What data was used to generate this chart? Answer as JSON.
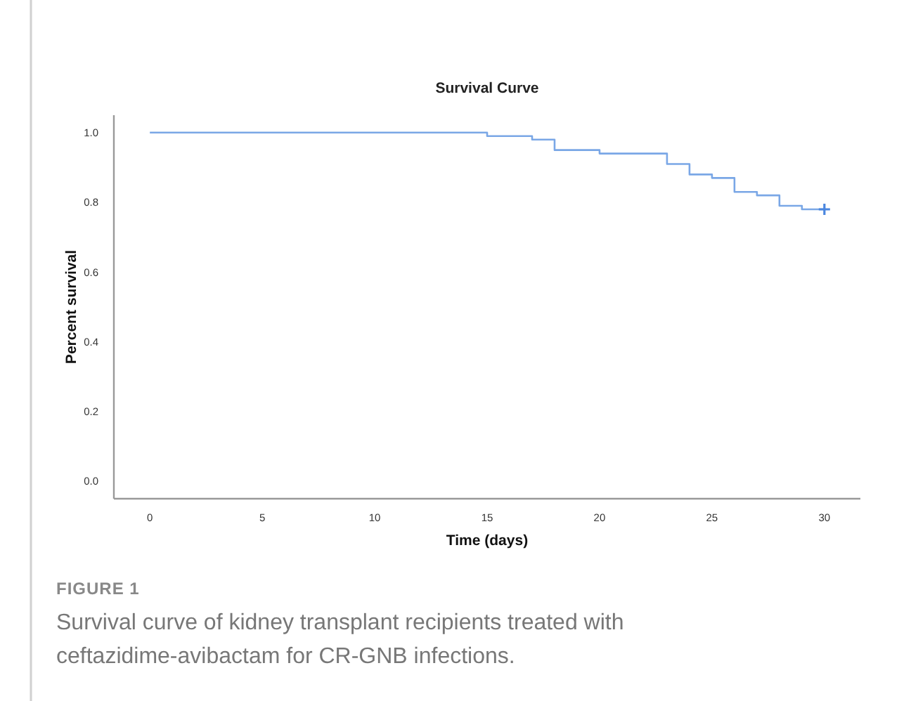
{
  "chart_data": {
    "type": "step",
    "title": "Survival Curve",
    "xlabel": "Time (days)",
    "ylabel": "Percent survival",
    "xlim": [
      -1.6,
      31.6
    ],
    "xticks": [
      0,
      5,
      10,
      15,
      20,
      25,
      30
    ],
    "ylim": [
      -0.05,
      1.05
    ],
    "yticks": [
      {
        "value": 0,
        "label": "0.0"
      },
      0.2,
      0.4,
      0.6,
      0.8,
      {
        "value": 1,
        "label": "1.0"
      }
    ],
    "grid": false,
    "line_style": "solid",
    "series": [
      {
        "color": "#7aa7e6",
        "x": [
          0,
          15,
          17,
          18,
          20,
          23,
          24,
          25,
          26,
          27,
          28,
          29,
          30
        ],
        "values": [
          1,
          0.99,
          0.98,
          0.95,
          0.94,
          0.91,
          0.88,
          0.87,
          0.83,
          0.82,
          0.79,
          0.78,
          0.78
        ]
      },
      {
        "type": "scatter",
        "color": "#4a86df",
        "marker": "cross",
        "x": [
          30
        ],
        "values": [
          0.78
        ]
      }
    ],
    "annotations": [
      "FIGURE 1",
      "Survival curve of kidney transplant recipients treated with ceftazidime-avibactam for CR-GNB infections."
    ]
  }
}
